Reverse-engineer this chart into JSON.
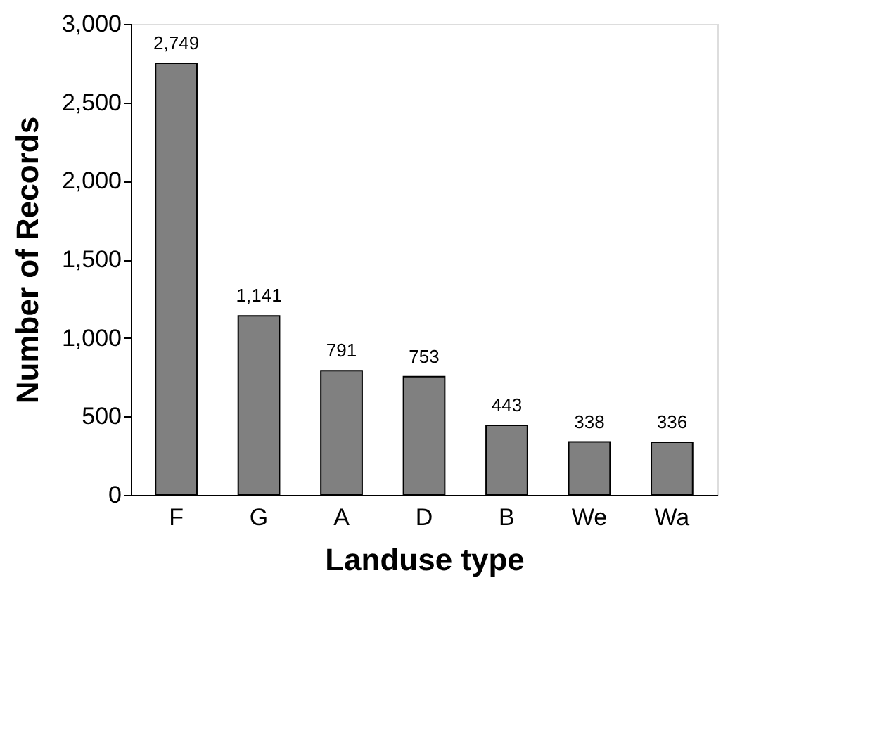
{
  "chart_data": {
    "type": "bar",
    "xlabel": "Landuse type",
    "ylabel": "Number of Records",
    "categories": [
      "F",
      "G",
      "A",
      "D",
      "B",
      "We",
      "Wa"
    ],
    "values": [
      2749,
      1141,
      791,
      753,
      443,
      338,
      336
    ],
    "value_labels": [
      "2,749",
      "1,141",
      "791",
      "753",
      "443",
      "338",
      "336"
    ],
    "color": "#808080",
    "ylim": [
      0,
      3000
    ],
    "yticks": [
      0,
      {
        "value": 500,
        "label": "500"
      },
      {
        "value": 1000,
        "label": "1,000"
      },
      {
        "value": 1500,
        "label": "1,500"
      },
      {
        "value": 2000,
        "label": "2,000"
      },
      {
        "value": 2500,
        "label": "2,500"
      },
      {
        "value": 3000,
        "label": "3,000"
      }
    ],
    "grid": false
  }
}
